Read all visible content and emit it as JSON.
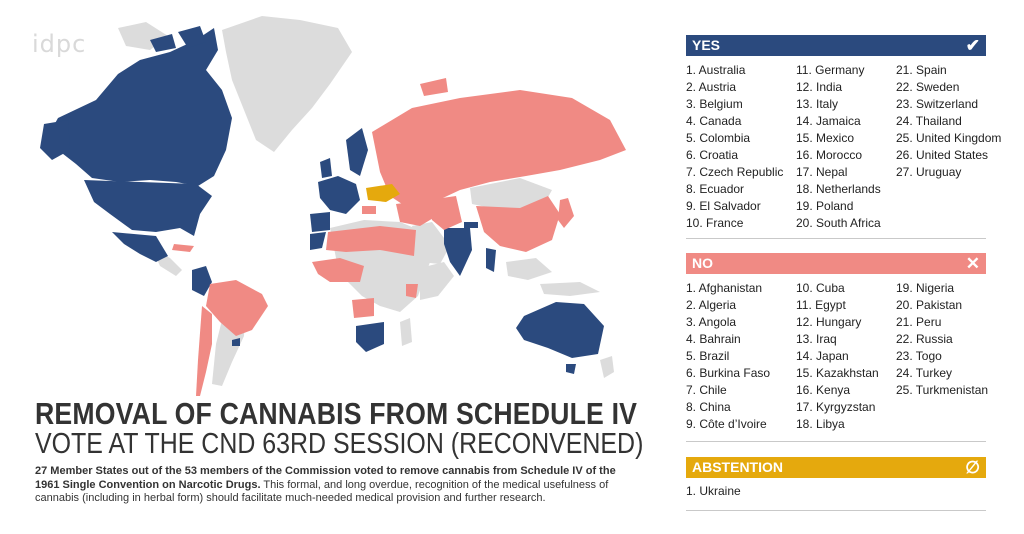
{
  "logo": "idpc",
  "title_line1": "REMOVAL OF CANNABIS FROM SCHEDULE IV",
  "title_line2": "VOTE AT THE CND 63RD SESSION (RECONVENED)",
  "description": {
    "bold_part": "27 Member States out of the 53 members of the Commission voted to remove cannabis from Schedule IV of the 1961 Single Convention on Narcotic Drugs.",
    "rest": " This formal, and long overdue, recognition of the medical usefulness of cannabis (including in herbal form) should facilitate much-needed medical provision and further research."
  },
  "colors": {
    "yes": "#2b4a7e",
    "no": "#f08a84",
    "abstention": "#e5a90d",
    "no_member": "#dcdcdc"
  },
  "yes": {
    "label": "YES",
    "icon": "check-icon",
    "countries": [
      "1. Australia",
      "2. Austria",
      "3. Belgium",
      "4. Canada",
      "5. Colombia",
      "6. Croatia",
      "7. Czech Republic",
      "8. Ecuador",
      "9. El Salvador",
      "10. France",
      "11. Germany",
      "12. India",
      "13. Italy",
      "14. Jamaica",
      "15. Mexico",
      "16. Morocco",
      "17. Nepal",
      "18. Netherlands",
      "19. Poland",
      "20. South Africa",
      "21. Spain",
      "22. Sweden",
      "23. Switzerland",
      "24. Thailand",
      "25. United Kingdom",
      "26. United States",
      "27. Uruguay"
    ]
  },
  "no": {
    "label": "NO",
    "icon": "cross-icon",
    "countries": [
      "1. Afghanistan",
      "2. Algeria",
      "3. Angola",
      "4. Bahrain",
      "5. Brazil",
      "6. Burkina Faso",
      "7. Chile",
      "8. China",
      "9. Côte d’Ivoire",
      "10. Cuba",
      "11. Egypt",
      "12. Hungary",
      "13. Iraq",
      "14. Japan",
      "15. Kazakhstan",
      "16. Kenya",
      "17. Kyrgyzstan",
      "18. Libya",
      "19. Nigeria",
      "20. Pakistan",
      "21. Peru",
      "22. Russia",
      "23. Togo",
      "24. Turkey",
      "25. Turkmenistan"
    ]
  },
  "abstention": {
    "label": "ABSTENTION",
    "icon": "empty-set-icon",
    "countries": [
      "1. Ukraine"
    ]
  }
}
